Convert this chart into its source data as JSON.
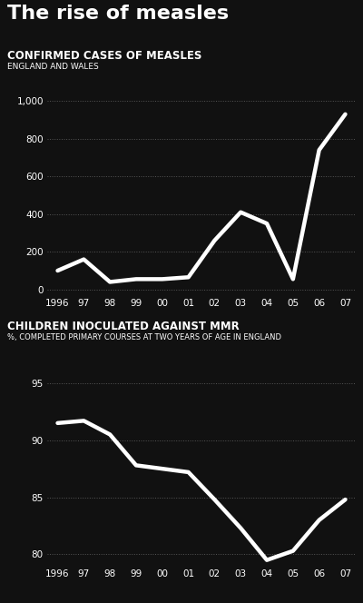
{
  "title": "The rise of measles",
  "background_color": "#111111",
  "text_color": "#ffffff",
  "line_color": "#ffffff",
  "chart1_title": "CONFIRMED CASES OF MEASLES",
  "chart1_subtitle": "ENGLAND AND WALES",
  "chart1_years": [
    1996,
    1997,
    1998,
    1999,
    2000,
    2001,
    2002,
    2003,
    2004,
    2005,
    2006,
    2007
  ],
  "chart1_values": [
    100,
    160,
    40,
    55,
    55,
    65,
    260,
    410,
    350,
    55,
    740,
    930
  ],
  "chart1_ylim": [
    -30,
    1030
  ],
  "chart1_yticks": [
    0,
    200,
    400,
    600,
    800,
    1000
  ],
  "chart1_ytick_labels": [
    "0",
    "200",
    "400",
    "600",
    "800",
    "1,000"
  ],
  "chart2_title": "CHILDREN INOCULATED AGAINST MMR",
  "chart2_subtitle": "%, COMPLETED PRIMARY COURSES AT TWO YEARS OF AGE IN ENGLAND",
  "chart2_years": [
    1996,
    1997,
    1998,
    1999,
    2000,
    2001,
    2002,
    2003,
    2004,
    2005,
    2006,
    2007
  ],
  "chart2_values": [
    91.5,
    91.7,
    90.5,
    87.8,
    87.5,
    87.2,
    84.8,
    82.3,
    79.5,
    80.3,
    83.0,
    84.8
  ],
  "chart2_ylim": [
    79,
    96.5
  ],
  "chart2_yticks": [
    80,
    85,
    90,
    95
  ],
  "chart2_ytick_labels": [
    "80",
    "85",
    "90",
    "95"
  ],
  "x_tick_labels": [
    "1996",
    "97",
    "98",
    "99",
    "00",
    "01",
    "02",
    "03",
    "04",
    "05",
    "06",
    "07"
  ],
  "grid_color": "#555555",
  "line_width": 3.2
}
